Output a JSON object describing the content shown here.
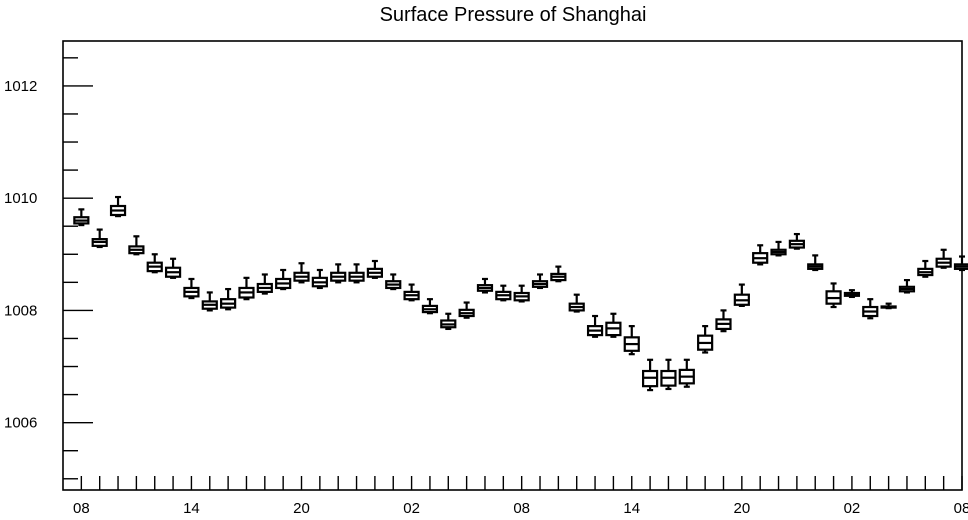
{
  "chart_data": {
    "type": "box",
    "title": "Surface Pressure of Shanghai",
    "xlabel": "",
    "ylabel": "",
    "ylim": [
      1004.8,
      1012.8
    ],
    "xlim": [
      -1,
      48
    ],
    "y_ticks": [
      1006,
      1008,
      1010,
      1012
    ],
    "y_tick_labels": [
      "1006",
      "1008",
      "1010",
      "1012"
    ],
    "x_tick_positions": [
      0,
      6,
      12,
      18,
      24,
      30,
      36,
      42,
      48
    ],
    "x_tick_labels": [
      "08",
      "14",
      "20",
      "02",
      "08",
      "14",
      "20",
      "02",
      "08"
    ],
    "grid": false,
    "boxes": [
      {
        "x": 0,
        "whislo": 1009.52,
        "q1": 1009.55,
        "med": 1009.6,
        "q3": 1009.66,
        "whishi": 1009.8
      },
      {
        "x": 1,
        "whislo": 1009.13,
        "q1": 1009.15,
        "med": 1009.22,
        "q3": 1009.27,
        "whishi": 1009.44
      },
      {
        "x": 2,
        "whislo": 1009.68,
        "q1": 1009.7,
        "med": 1009.78,
        "q3": 1009.86,
        "whishi": 1010.02
      },
      {
        "x": 3,
        "whislo": 1009.0,
        "q1": 1009.02,
        "med": 1009.08,
        "q3": 1009.14,
        "whishi": 1009.32
      },
      {
        "x": 4,
        "whislo": 1008.68,
        "q1": 1008.7,
        "med": 1008.78,
        "q3": 1008.85,
        "whishi": 1009.0
      },
      {
        "x": 5,
        "whislo": 1008.58,
        "q1": 1008.6,
        "med": 1008.68,
        "q3": 1008.76,
        "whishi": 1008.92
      },
      {
        "x": 6,
        "whislo": 1008.22,
        "q1": 1008.25,
        "med": 1008.33,
        "q3": 1008.4,
        "whishi": 1008.56
      },
      {
        "x": 7,
        "whislo": 1008.0,
        "q1": 1008.03,
        "med": 1008.1,
        "q3": 1008.16,
        "whishi": 1008.32
      },
      {
        "x": 8,
        "whislo": 1008.02,
        "q1": 1008.05,
        "med": 1008.12,
        "q3": 1008.2,
        "whishi": 1008.38
      },
      {
        "x": 9,
        "whislo": 1008.2,
        "q1": 1008.23,
        "med": 1008.32,
        "q3": 1008.4,
        "whishi": 1008.58
      },
      {
        "x": 10,
        "whislo": 1008.3,
        "q1": 1008.33,
        "med": 1008.4,
        "q3": 1008.47,
        "whishi": 1008.64
      },
      {
        "x": 11,
        "whislo": 1008.38,
        "q1": 1008.4,
        "med": 1008.48,
        "q3": 1008.56,
        "whishi": 1008.72
      },
      {
        "x": 12,
        "whislo": 1008.5,
        "q1": 1008.53,
        "med": 1008.6,
        "q3": 1008.67,
        "whishi": 1008.84
      },
      {
        "x": 13,
        "whislo": 1008.4,
        "q1": 1008.43,
        "med": 1008.5,
        "q3": 1008.58,
        "whishi": 1008.72
      },
      {
        "x": 14,
        "whislo": 1008.5,
        "q1": 1008.53,
        "med": 1008.6,
        "q3": 1008.67,
        "whishi": 1008.82
      },
      {
        "x": 15,
        "whislo": 1008.5,
        "q1": 1008.53,
        "med": 1008.6,
        "q3": 1008.67,
        "whishi": 1008.82
      },
      {
        "x": 16,
        "whislo": 1008.58,
        "q1": 1008.6,
        "med": 1008.67,
        "q3": 1008.74,
        "whishi": 1008.88
      },
      {
        "x": 17,
        "whislo": 1008.38,
        "q1": 1008.4,
        "med": 1008.46,
        "q3": 1008.52,
        "whishi": 1008.64
      },
      {
        "x": 18,
        "whislo": 1008.18,
        "q1": 1008.2,
        "med": 1008.27,
        "q3": 1008.33,
        "whishi": 1008.46
      },
      {
        "x": 19,
        "whislo": 1007.95,
        "q1": 1007.97,
        "med": 1008.02,
        "q3": 1008.08,
        "whishi": 1008.2
      },
      {
        "x": 20,
        "whislo": 1007.67,
        "q1": 1007.7,
        "med": 1007.75,
        "q3": 1007.82,
        "whishi": 1007.94
      },
      {
        "x": 21,
        "whislo": 1007.87,
        "q1": 1007.9,
        "med": 1007.95,
        "q3": 1008.01,
        "whishi": 1008.14
      },
      {
        "x": 22,
        "whislo": 1008.32,
        "q1": 1008.35,
        "med": 1008.4,
        "q3": 1008.45,
        "whishi": 1008.56
      },
      {
        "x": 23,
        "whislo": 1008.18,
        "q1": 1008.2,
        "med": 1008.27,
        "q3": 1008.33,
        "whishi": 1008.44
      },
      {
        "x": 24,
        "whislo": 1008.16,
        "q1": 1008.18,
        "med": 1008.25,
        "q3": 1008.31,
        "whishi": 1008.44
      },
      {
        "x": 25,
        "whislo": 1008.4,
        "q1": 1008.42,
        "med": 1008.47,
        "q3": 1008.52,
        "whishi": 1008.64
      },
      {
        "x": 26,
        "whislo": 1008.52,
        "q1": 1008.54,
        "med": 1008.6,
        "q3": 1008.65,
        "whishi": 1008.78
      },
      {
        "x": 27,
        "whislo": 1007.98,
        "q1": 1008.0,
        "med": 1008.06,
        "q3": 1008.12,
        "whishi": 1008.28
      },
      {
        "x": 28,
        "whislo": 1007.53,
        "q1": 1007.56,
        "med": 1007.64,
        "q3": 1007.72,
        "whishi": 1007.9
      },
      {
        "x": 29,
        "whislo": 1007.53,
        "q1": 1007.56,
        "med": 1007.68,
        "q3": 1007.78,
        "whishi": 1007.94
      },
      {
        "x": 30,
        "whislo": 1007.22,
        "q1": 1007.28,
        "med": 1007.4,
        "q3": 1007.52,
        "whishi": 1007.72
      },
      {
        "x": 31,
        "whislo": 1006.58,
        "q1": 1006.65,
        "med": 1006.8,
        "q3": 1006.92,
        "whishi": 1007.12
      },
      {
        "x": 32,
        "whislo": 1006.6,
        "q1": 1006.66,
        "med": 1006.8,
        "q3": 1006.92,
        "whishi": 1007.12
      },
      {
        "x": 33,
        "whislo": 1006.64,
        "q1": 1006.7,
        "med": 1006.82,
        "q3": 1006.94,
        "whishi": 1007.12
      },
      {
        "x": 34,
        "whislo": 1007.25,
        "q1": 1007.3,
        "med": 1007.42,
        "q3": 1007.55,
        "whishi": 1007.72
      },
      {
        "x": 35,
        "whislo": 1007.63,
        "q1": 1007.67,
        "med": 1007.76,
        "q3": 1007.84,
        "whishi": 1008.0
      },
      {
        "x": 36,
        "whislo": 1008.08,
        "q1": 1008.1,
        "med": 1008.18,
        "q3": 1008.28,
        "whishi": 1008.46
      },
      {
        "x": 37,
        "whislo": 1008.82,
        "q1": 1008.85,
        "med": 1008.93,
        "q3": 1009.02,
        "whishi": 1009.16
      },
      {
        "x": 38,
        "whislo": 1008.98,
        "q1": 1009.0,
        "med": 1009.04,
        "q3": 1009.08,
        "whishi": 1009.22
      },
      {
        "x": 39,
        "whislo": 1009.1,
        "q1": 1009.12,
        "med": 1009.18,
        "q3": 1009.24,
        "whishi": 1009.36
      },
      {
        "x": 40,
        "whislo": 1008.72,
        "q1": 1008.74,
        "med": 1008.78,
        "q3": 1008.82,
        "whishi": 1008.98
      },
      {
        "x": 41,
        "whislo": 1008.06,
        "q1": 1008.12,
        "med": 1008.22,
        "q3": 1008.34,
        "whishi": 1008.48
      },
      {
        "x": 42,
        "whislo": 1008.24,
        "q1": 1008.26,
        "med": 1008.28,
        "q3": 1008.31,
        "whishi": 1008.36
      },
      {
        "x": 43,
        "whislo": 1007.86,
        "q1": 1007.9,
        "med": 1007.98,
        "q3": 1008.06,
        "whishi": 1008.2
      },
      {
        "x": 44,
        "whislo": 1008.04,
        "q1": 1008.05,
        "med": 1008.06,
        "q3": 1008.07,
        "whishi": 1008.12
      },
      {
        "x": 45,
        "whislo": 1008.32,
        "q1": 1008.34,
        "med": 1008.38,
        "q3": 1008.42,
        "whishi": 1008.54
      },
      {
        "x": 46,
        "whislo": 1008.6,
        "q1": 1008.63,
        "med": 1008.68,
        "q3": 1008.74,
        "whishi": 1008.88
      },
      {
        "x": 47,
        "whislo": 1008.76,
        "q1": 1008.78,
        "med": 1008.85,
        "q3": 1008.92,
        "whishi": 1009.08
      },
      {
        "x": 48,
        "whislo": 1008.72,
        "q1": 1008.74,
        "med": 1008.78,
        "q3": 1008.82,
        "whishi": 1008.96
      }
    ]
  }
}
